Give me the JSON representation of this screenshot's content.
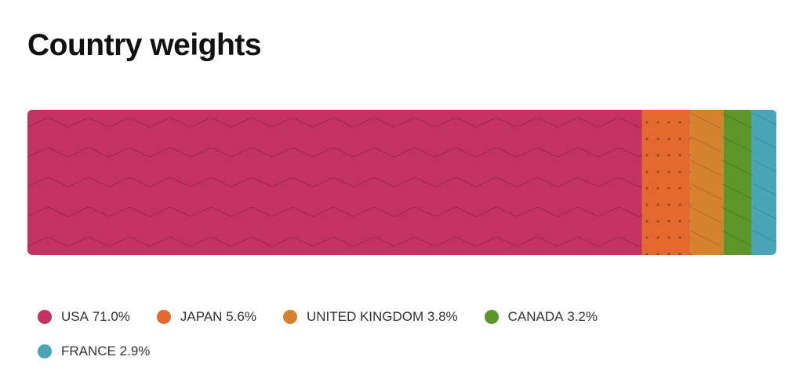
{
  "chart_data": {
    "type": "stacked_bar",
    "title": "Country weights",
    "categories": [
      "USA",
      "JAPAN",
      "UNITED KINGDOM",
      "CANADA",
      "FRANCE"
    ],
    "values": [
      71.0,
      5.6,
      3.8,
      3.2,
      2.9
    ],
    "value_labels": [
      "71.0%",
      "5.6%",
      "3.8%",
      "3.2%",
      "2.9%"
    ],
    "colors": [
      "#c43163",
      "#e4692e",
      "#d4822d",
      "#5c9629",
      "#4aa5b7"
    ]
  }
}
